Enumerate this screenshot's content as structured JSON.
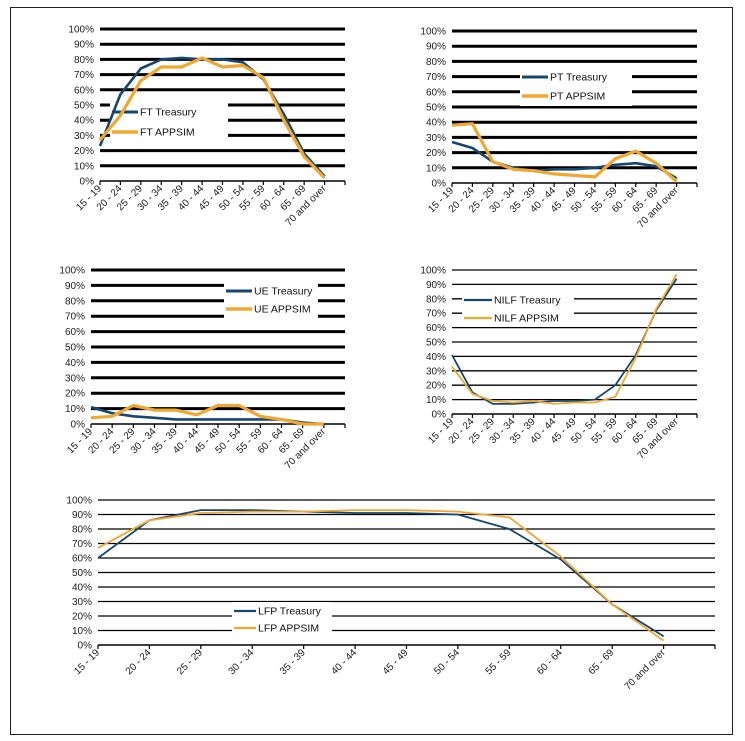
{
  "colors": {
    "treasury": "#17476e",
    "appsim": "#f0a830",
    "grid": "#000000",
    "frame": "#222222"
  },
  "chart_data": [
    {
      "id": "ft",
      "type": "line",
      "title": "",
      "xlabel": "",
      "ylabel": "",
      "ylim": [
        0,
        1
      ],
      "yticks": [
        "0%",
        "10%",
        "20%",
        "30%",
        "40%",
        "50%",
        "60%",
        "70%",
        "80%",
        "90%",
        "100%"
      ],
      "grid": true,
      "categories": [
        "15 - 19",
        "20 - 24",
        "25 - 29",
        "30 - 34",
        "35 - 39",
        "40 - 44",
        "45 - 49",
        "50 - 54",
        "55 - 59",
        "60 - 64",
        "65 - 69",
        "70 and over"
      ],
      "series": [
        {
          "name": "FT Treasury",
          "values": [
            0.23,
            0.57,
            0.74,
            0.8,
            0.81,
            0.8,
            0.8,
            0.78,
            0.67,
            0.44,
            0.18,
            0.03
          ]
        },
        {
          "name": "FT APPSIM",
          "values": [
            0.27,
            0.43,
            0.66,
            0.75,
            0.75,
            0.81,
            0.75,
            0.76,
            0.68,
            0.4,
            0.16,
            0.02
          ]
        }
      ],
      "legend": {
        "position": "inside-center-left"
      }
    },
    {
      "id": "pt",
      "type": "line",
      "title": "",
      "xlabel": "",
      "ylabel": "",
      "ylim": [
        0,
        1
      ],
      "yticks": [
        "0%",
        "10%",
        "20%",
        "30%",
        "40%",
        "50%",
        "60%",
        "70%",
        "80%",
        "90%",
        "100%"
      ],
      "grid": true,
      "categories": [
        "15 - 19",
        "20 - 24",
        "25 - 29",
        "30 - 34",
        "35 - 39",
        "40 - 44",
        "45 - 49",
        "50 - 54",
        "55 - 59",
        "60 - 64",
        "65 - 69",
        "70 and over"
      ],
      "series": [
        {
          "name": "PT Treasury",
          "values": [
            0.27,
            0.23,
            0.14,
            0.1,
            0.08,
            0.09,
            0.09,
            0.1,
            0.12,
            0.13,
            0.11,
            0.03
          ]
        },
        {
          "name": "PT APPSIM",
          "values": [
            0.38,
            0.39,
            0.14,
            0.09,
            0.08,
            0.06,
            0.05,
            0.04,
            0.16,
            0.21,
            0.13,
            0.01
          ]
        }
      ],
      "legend": {
        "position": "inside-top-center"
      }
    },
    {
      "id": "ue",
      "type": "line",
      "title": "",
      "xlabel": "",
      "ylabel": "",
      "ylim": [
        0,
        1
      ],
      "yticks": [
        "0%",
        "10%",
        "20%",
        "30%",
        "40%",
        "50%",
        "60%",
        "70%",
        "80%",
        "90%",
        "100%"
      ],
      "grid": true,
      "categories": [
        "15 - 19",
        "20 - 24",
        "25 - 29",
        "30 - 34",
        "35 - 39",
        "40 - 44",
        "45 - 49",
        "50 - 54",
        "55 - 59",
        "60 - 64",
        "65 - 69",
        "70 and over"
      ],
      "series": [
        {
          "name": "UE Treasury",
          "values": [
            0.11,
            0.07,
            0.05,
            0.04,
            0.03,
            0.03,
            0.03,
            0.03,
            0.03,
            0.03,
            0.01,
            0.0
          ]
        },
        {
          "name": "UE APPSIM",
          "values": [
            0.04,
            0.05,
            0.12,
            0.09,
            0.09,
            0.06,
            0.12,
            0.12,
            0.05,
            0.03,
            0.0,
            0.0
          ]
        }
      ],
      "legend": {
        "position": "inside-top-right"
      }
    },
    {
      "id": "nilf",
      "type": "line",
      "title": "",
      "xlabel": "",
      "ylabel": "",
      "ylim": [
        0,
        1
      ],
      "yticks": [
        "0%",
        "10%",
        "20%",
        "30%",
        "40%",
        "50%",
        "60%",
        "70%",
        "80%",
        "90%",
        "100%"
      ],
      "grid": true,
      "categories": [
        "15 - 19",
        "20 - 24",
        "25 - 29",
        "30 - 34",
        "35 - 39",
        "40 - 44",
        "45 - 49",
        "50 - 54",
        "55 - 59",
        "60 - 64",
        "65 - 69",
        "70 and over"
      ],
      "series": [
        {
          "name": "NILF Treasury",
          "values": [
            0.41,
            0.15,
            0.07,
            0.07,
            0.08,
            0.09,
            0.09,
            0.1,
            0.2,
            0.41,
            0.72,
            0.94
          ]
        },
        {
          "name": "NILF APPSIM",
          "values": [
            0.33,
            0.14,
            0.09,
            0.08,
            0.09,
            0.07,
            0.08,
            0.08,
            0.12,
            0.39,
            0.73,
            0.97
          ]
        }
      ],
      "legend": {
        "position": "inside-top-left"
      }
    },
    {
      "id": "lfp",
      "type": "line",
      "title": "",
      "xlabel": "",
      "ylabel": "",
      "ylim": [
        0,
        1
      ],
      "yticks": [
        "0%",
        "10%",
        "20%",
        "30%",
        "40%",
        "50%",
        "60%",
        "70%",
        "80%",
        "90%",
        "100%"
      ],
      "grid": true,
      "categories": [
        "15 - 19",
        "20 - 24",
        "25 - 29",
        "30 - 34",
        "35 - 39",
        "40 - 44",
        "45 - 49",
        "50 - 54",
        "55 - 59",
        "60 - 64",
        "65 - 69",
        "70 and over"
      ],
      "series": [
        {
          "name": "LFP Treasury",
          "values": [
            0.6,
            0.86,
            0.93,
            0.93,
            0.92,
            0.91,
            0.91,
            0.9,
            0.8,
            0.59,
            0.28,
            0.06
          ]
        },
        {
          "name": "LFP APPSIM",
          "values": [
            0.67,
            0.86,
            0.91,
            0.92,
            0.92,
            0.93,
            0.93,
            0.92,
            0.88,
            0.61,
            0.28,
            0.03
          ]
        }
      ],
      "legend": {
        "position": "inside-lower-left"
      }
    }
  ]
}
